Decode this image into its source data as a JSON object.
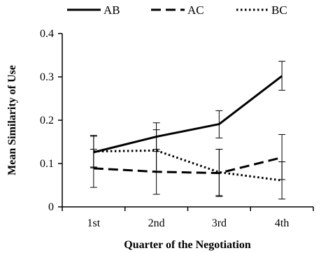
{
  "chart_data": {
    "type": "line",
    "categories": [
      "1st",
      "2nd",
      "3rd",
      "4th"
    ],
    "xlabel": "Quarter of the Negotiation",
    "ylabel": "Mean Similarity of Use",
    "ylim": [
      0,
      0.4
    ],
    "yticks": [
      "0",
      "0.1",
      "0.2",
      "0.3",
      "0.4"
    ],
    "grid": false,
    "legend_position": "top",
    "error_bars": true,
    "series": [
      {
        "name": "AB",
        "style": "solid",
        "color": "#000000",
        "values": [
          0.126,
          0.162,
          0.191,
          0.302
        ],
        "error_low": [
          0.09,
          0.128,
          0.159,
          0.269
        ],
        "error_high": [
          0.163,
          0.194,
          0.222,
          0.336
        ]
      },
      {
        "name": "AC",
        "style": "dashed",
        "color": "#000000",
        "values": [
          0.089,
          0.081,
          0.078,
          0.114
        ],
        "error_low": [
          0.045,
          0.029,
          0.024,
          0.063
        ],
        "error_high": [
          0.133,
          0.133,
          0.133,
          0.167
        ]
      },
      {
        "name": "BC",
        "style": "dotted",
        "color": "#000000",
        "values": [
          0.128,
          0.13,
          0.08,
          0.061
        ],
        "error_low": [
          0.092,
          0.082,
          0.026,
          0.018
        ],
        "error_high": [
          0.165,
          0.178,
          0.133,
          0.104
        ]
      }
    ]
  }
}
